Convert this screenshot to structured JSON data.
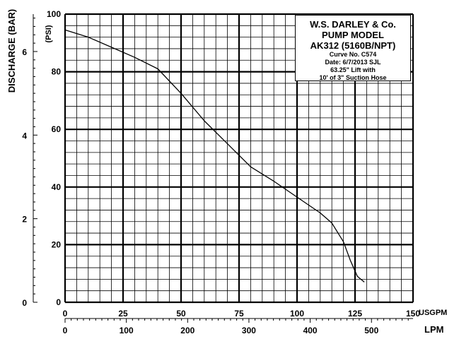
{
  "chart_data": {
    "type": "line",
    "title_block": {
      "company": "W.S. DARLEY & Co.",
      "model_line": "PUMP MODEL",
      "model": "AK312 (5160B/NPT)",
      "curve": "Curve No. C574",
      "date": "Date: 6/7/2013  SJL",
      "lift": "63.25\" Lift with",
      "hose": "10' of 3\" Suction Hose"
    },
    "xlabel_bottom_top": "USGPM",
    "xlabel_bottom": "LPM",
    "ylabel_left": "DISCHARGE (BAR)",
    "ylabel_inner": "(PSI)",
    "x_gpm_range": [
      0,
      150
    ],
    "x_gpm_ticks": [
      "0",
      "25",
      "50",
      "75",
      "100",
      "125",
      "150"
    ],
    "x_lpm_ticks": [
      "0",
      "100",
      "200",
      "300",
      "400",
      "500"
    ],
    "x_lpm_tick_values": [
      0,
      100,
      200,
      300,
      400,
      500
    ],
    "y_psi_range": [
      0,
      100
    ],
    "y_psi_ticks": [
      "0",
      "20",
      "40",
      "60",
      "80",
      "100"
    ],
    "y_bar_ticks": [
      "0",
      "2",
      "4",
      "6"
    ],
    "y_bar_tick_values": [
      0,
      2,
      4,
      6
    ],
    "grid": true,
    "series": [
      {
        "x": [
          0,
          10,
          20,
          30,
          40,
          50,
          60,
          70,
          80,
          90,
          100,
          110,
          115,
          120,
          123,
          126,
          129
        ],
        "y": [
          94.5,
          92,
          88.5,
          85,
          81,
          72.5,
          63,
          55,
          47,
          42,
          36.5,
          31,
          27.5,
          21,
          14.5,
          9,
          7
        ]
      }
    ]
  }
}
